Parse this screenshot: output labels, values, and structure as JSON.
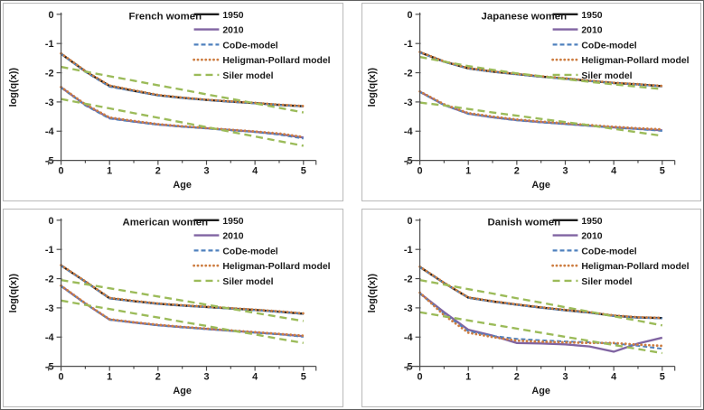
{
  "colors": {
    "black": "#1c1c1c",
    "purple": "#8064A2",
    "blue": "#4F81BD",
    "orange": "#CD7D41",
    "green": "#9BBB59",
    "axis": "#4d4d4d",
    "panel_border": "#b9b9b9"
  },
  "chart_data": [
    {
      "type": "line",
      "title": "French women",
      "xlabel": "Age",
      "ylabel": "log(q(x))",
      "xlim": [
        0,
        5
      ],
      "ylim": [
        -5,
        0
      ],
      "xticks": [
        0,
        1,
        2,
        3,
        4,
        5
      ],
      "yticks": [
        0,
        -1,
        -2,
        -3,
        -4,
        -5
      ],
      "grid": false,
      "legend_position": "top-right",
      "legend": [
        {
          "label": "1950",
          "style": "solid-black"
        },
        {
          "label": "2010",
          "style": "solid-purple"
        },
        {
          "label": "CoDe-model",
          "style": "dashed-blue"
        },
        {
          "label": "Heligman-Pollard model",
          "style": "dotted-orange"
        },
        {
          "label": "Siler model",
          "style": "dashed-green"
        }
      ],
      "x": [
        0,
        0.5,
        1,
        1.5,
        2,
        2.5,
        3,
        3.5,
        4,
        4.5,
        5
      ],
      "series": [
        {
          "name": "1950",
          "style": "solid-black",
          "values": [
            -1.35,
            -1.95,
            -2.45,
            -2.62,
            -2.77,
            -2.86,
            -2.93,
            -2.99,
            -3.04,
            -3.1,
            -3.15
          ]
        },
        {
          "name": "2010",
          "style": "solid-purple",
          "values": [
            -2.5,
            -3.1,
            -3.55,
            -3.67,
            -3.77,
            -3.84,
            -3.9,
            -3.96,
            -4.02,
            -4.1,
            -4.22
          ]
        },
        {
          "name": "CoDe-model 1950",
          "style": "dashed-blue",
          "values": [
            -1.36,
            -1.97,
            -2.48,
            -2.63,
            -2.78,
            -2.87,
            -2.94,
            -3.0,
            -3.05,
            -3.11,
            -3.16
          ]
        },
        {
          "name": "CoDe-model 2010",
          "style": "dashed-blue",
          "values": [
            -2.51,
            -3.12,
            -3.57,
            -3.68,
            -3.78,
            -3.85,
            -3.91,
            -3.97,
            -4.03,
            -4.12,
            -4.25
          ]
        },
        {
          "name": "Heligman-Pollard model 1950",
          "style": "dotted-orange",
          "values": [
            -1.34,
            -1.94,
            -2.44,
            -2.6,
            -2.76,
            -2.85,
            -2.92,
            -2.98,
            -3.03,
            -3.09,
            -3.14
          ]
        },
        {
          "name": "Heligman-Pollard model 2010",
          "style": "dotted-orange",
          "values": [
            -2.49,
            -3.08,
            -3.53,
            -3.65,
            -3.76,
            -3.83,
            -3.89,
            -3.95,
            -4.01,
            -4.08,
            -4.2
          ]
        },
        {
          "name": "Siler model 1950",
          "style": "dashed-green",
          "values": [
            -1.8,
            -1.96,
            -2.12,
            -2.27,
            -2.43,
            -2.58,
            -2.74,
            -2.89,
            -3.05,
            -3.2,
            -3.36
          ]
        },
        {
          "name": "Siler model 2010",
          "style": "dashed-green",
          "values": [
            -2.9,
            -3.06,
            -3.22,
            -3.38,
            -3.54,
            -3.7,
            -3.86,
            -4.02,
            -4.18,
            -4.34,
            -4.5
          ]
        }
      ]
    },
    {
      "type": "line",
      "title": "Japanese women",
      "xlabel": "Age",
      "ylabel": "log(q(x))",
      "xlim": [
        0,
        5
      ],
      "ylim": [
        -5,
        0
      ],
      "xticks": [
        0,
        1,
        2,
        3,
        4,
        5
      ],
      "yticks": [
        0,
        -1,
        -2,
        -3,
        -4,
        -5
      ],
      "grid": false,
      "legend_position": "top-right",
      "legend": [
        {
          "label": "1950",
          "style": "solid-black"
        },
        {
          "label": "2010",
          "style": "solid-purple"
        },
        {
          "label": "CoDe-model",
          "style": "dashed-blue"
        },
        {
          "label": "Heligman-Pollard model",
          "style": "dotted-orange"
        },
        {
          "label": "Siler model",
          "style": "dashed-green"
        }
      ],
      "x": [
        0,
        0.5,
        1,
        1.5,
        2,
        2.5,
        3,
        3.5,
        4,
        4.5,
        5
      ],
      "series": [
        {
          "name": "1950",
          "style": "solid-black",
          "values": [
            -1.3,
            -1.62,
            -1.85,
            -1.96,
            -2.05,
            -2.13,
            -2.2,
            -2.28,
            -2.35,
            -2.4,
            -2.46
          ]
        },
        {
          "name": "2010",
          "style": "solid-purple",
          "values": [
            -2.65,
            -3.1,
            -3.4,
            -3.52,
            -3.62,
            -3.69,
            -3.75,
            -3.81,
            -3.87,
            -3.92,
            -3.97
          ]
        },
        {
          "name": "CoDe-model 1950",
          "style": "dashed-blue",
          "values": [
            -1.31,
            -1.63,
            -1.86,
            -1.97,
            -2.06,
            -2.14,
            -2.21,
            -2.29,
            -2.36,
            -2.41,
            -2.47
          ]
        },
        {
          "name": "CoDe-model 2010",
          "style": "dashed-blue",
          "values": [
            -2.66,
            -3.11,
            -3.41,
            -3.53,
            -3.63,
            -3.7,
            -3.76,
            -3.82,
            -3.88,
            -3.93,
            -3.99
          ]
        },
        {
          "name": "Heligman-Pollard model 1950",
          "style": "dotted-orange",
          "values": [
            -1.29,
            -1.61,
            -1.84,
            -1.95,
            -2.04,
            -2.12,
            -2.19,
            -2.27,
            -2.34,
            -2.39,
            -2.45
          ]
        },
        {
          "name": "Heligman-Pollard model 2010",
          "style": "dotted-orange",
          "values": [
            -2.64,
            -3.08,
            -3.38,
            -3.5,
            -3.6,
            -3.67,
            -3.73,
            -3.79,
            -3.85,
            -3.9,
            -3.94
          ]
        },
        {
          "name": "Siler model 1950",
          "style": "dashed-green",
          "values": [
            -1.46,
            -1.62,
            -1.77,
            -1.9,
            -2.02,
            -2.12,
            -2.22,
            -2.31,
            -2.4,
            -2.48,
            -2.56
          ]
        },
        {
          "name": "Siler model 2010",
          "style": "dashed-green",
          "values": [
            -3.02,
            -3.12,
            -3.24,
            -3.36,
            -3.47,
            -3.58,
            -3.69,
            -3.8,
            -3.92,
            -4.04,
            -4.16
          ]
        }
      ]
    },
    {
      "type": "line",
      "title": "American women",
      "xlabel": "Age",
      "ylabel": "log(q(x))",
      "xlim": [
        0,
        5
      ],
      "ylim": [
        -5,
        0
      ],
      "xticks": [
        0,
        1,
        2,
        3,
        4,
        5
      ],
      "yticks": [
        0,
        -1,
        -2,
        -3,
        -4,
        -5
      ],
      "grid": false,
      "legend_position": "top-right",
      "legend": [
        {
          "label": "1950",
          "style": "solid-black"
        },
        {
          "label": "2010",
          "style": "solid-purple"
        },
        {
          "label": "CoDe-model",
          "style": "dashed-blue"
        },
        {
          "label": "Heligman-Pollard model",
          "style": "dotted-orange"
        },
        {
          "label": "Siler model",
          "style": "dashed-green"
        }
      ],
      "x": [
        0,
        0.5,
        1,
        1.5,
        2,
        2.5,
        3,
        3.5,
        4,
        4.5,
        5
      ],
      "series": [
        {
          "name": "1950",
          "style": "solid-black",
          "values": [
            -1.55,
            -2.1,
            -2.67,
            -2.77,
            -2.86,
            -2.92,
            -2.97,
            -3.02,
            -3.07,
            -3.13,
            -3.2
          ]
        },
        {
          "name": "2010",
          "style": "solid-purple",
          "values": [
            -2.25,
            -2.85,
            -3.4,
            -3.5,
            -3.59,
            -3.66,
            -3.72,
            -3.78,
            -3.84,
            -3.9,
            -3.97
          ]
        },
        {
          "name": "CoDe-model 1950",
          "style": "dashed-blue",
          "values": [
            -1.56,
            -2.11,
            -2.68,
            -2.78,
            -2.87,
            -2.93,
            -2.98,
            -3.03,
            -3.08,
            -3.14,
            -3.21
          ]
        },
        {
          "name": "CoDe-model 2010",
          "style": "dashed-blue",
          "values": [
            -2.26,
            -2.86,
            -3.41,
            -3.51,
            -3.6,
            -3.67,
            -3.73,
            -3.79,
            -3.85,
            -3.91,
            -3.99
          ]
        },
        {
          "name": "Heligman-Pollard model 1950",
          "style": "dotted-orange",
          "values": [
            -1.54,
            -2.09,
            -2.66,
            -2.76,
            -2.85,
            -2.91,
            -2.96,
            -3.01,
            -3.06,
            -3.12,
            -3.19
          ]
        },
        {
          "name": "Heligman-Pollard model 2010",
          "style": "dotted-orange",
          "values": [
            -2.24,
            -2.84,
            -3.39,
            -3.49,
            -3.58,
            -3.65,
            -3.71,
            -3.77,
            -3.83,
            -3.89,
            -3.95
          ]
        },
        {
          "name": "Siler model 1950",
          "style": "dashed-green",
          "values": [
            -2.05,
            -2.19,
            -2.33,
            -2.47,
            -2.61,
            -2.75,
            -2.89,
            -3.03,
            -3.17,
            -3.31,
            -3.45
          ]
        },
        {
          "name": "Siler model 2010",
          "style": "dashed-green",
          "values": [
            -2.75,
            -2.9,
            -3.04,
            -3.19,
            -3.33,
            -3.48,
            -3.62,
            -3.77,
            -3.91,
            -4.06,
            -4.2
          ]
        }
      ]
    },
    {
      "type": "line",
      "title": "Danish women",
      "xlabel": "Age",
      "ylabel": "log(q(x))",
      "xlim": [
        0,
        5
      ],
      "ylim": [
        -5,
        0
      ],
      "xticks": [
        0,
        1,
        2,
        3,
        4,
        5
      ],
      "yticks": [
        0,
        -1,
        -2,
        -3,
        -4,
        -5
      ],
      "grid": false,
      "legend_position": "top-right",
      "legend": [
        {
          "label": "1950",
          "style": "solid-black"
        },
        {
          "label": "2010",
          "style": "solid-purple"
        },
        {
          "label": "CoDe-model",
          "style": "dashed-blue"
        },
        {
          "label": "Heligman-Pollard model",
          "style": "dotted-orange"
        },
        {
          "label": "Siler model",
          "style": "dashed-green"
        }
      ],
      "x": [
        0,
        0.5,
        1,
        1.5,
        2,
        2.5,
        3,
        3.5,
        4,
        4.5,
        5
      ],
      "series": [
        {
          "name": "1950",
          "style": "solid-black",
          "values": [
            -1.6,
            -2.15,
            -2.65,
            -2.78,
            -2.89,
            -2.99,
            -3.08,
            -3.16,
            -3.27,
            -3.33,
            -3.35
          ]
        },
        {
          "name": "2010",
          "style": "solid-purple",
          "values": [
            -2.5,
            -3.15,
            -3.75,
            -3.95,
            -4.2,
            -4.22,
            -4.25,
            -4.32,
            -4.5,
            -4.22,
            -4.02
          ]
        },
        {
          "name": "CoDe-model 1950",
          "style": "dashed-blue",
          "values": [
            -1.61,
            -2.16,
            -2.66,
            -2.79,
            -2.9,
            -3.0,
            -3.09,
            -3.17,
            -3.28,
            -3.34,
            -3.36
          ]
        },
        {
          "name": "CoDe-model 2010",
          "style": "dashed-blue",
          "values": [
            -2.51,
            -3.2,
            -3.8,
            -3.96,
            -4.06,
            -4.11,
            -4.15,
            -4.18,
            -4.22,
            -4.3,
            -4.4
          ]
        },
        {
          "name": "Heligman-Pollard model 1950",
          "style": "dotted-orange",
          "values": [
            -1.59,
            -2.14,
            -2.64,
            -2.77,
            -2.88,
            -2.98,
            -3.07,
            -3.15,
            -3.26,
            -3.32,
            -3.34
          ]
        },
        {
          "name": "Heligman-Pollard model 2010",
          "style": "dotted-orange",
          "values": [
            -2.48,
            -3.25,
            -3.85,
            -4.0,
            -4.12,
            -4.16,
            -4.18,
            -4.2,
            -4.2,
            -4.26,
            -4.3
          ]
        },
        {
          "name": "Siler model 1950",
          "style": "dashed-green",
          "values": [
            -2.05,
            -2.2,
            -2.36,
            -2.51,
            -2.67,
            -2.82,
            -2.98,
            -3.13,
            -3.29,
            -3.44,
            -3.6
          ]
        },
        {
          "name": "Siler model 2010",
          "style": "dashed-green",
          "values": [
            -3.15,
            -3.29,
            -3.43,
            -3.57,
            -3.71,
            -3.85,
            -3.99,
            -4.13,
            -4.27,
            -4.41,
            -4.55
          ]
        }
      ]
    }
  ]
}
